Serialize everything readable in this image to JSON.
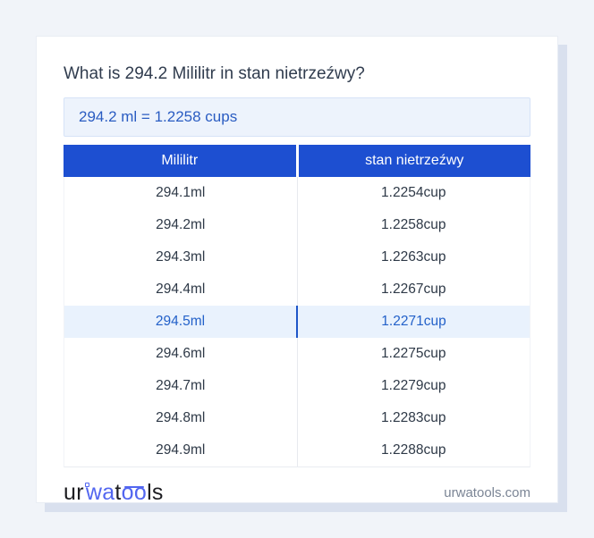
{
  "page": {
    "title": "What is 294.2 Mililitr in stan nietrzeźwy?",
    "result": "294.2 ml = 1.2258 cups",
    "footer_site": "urwatools.com"
  },
  "logo": {
    "name": "urwatools",
    "segments": [
      {
        "text": "ur",
        "style": "dark"
      },
      {
        "text": "",
        "style": "mark"
      },
      {
        "text": "wa",
        "style": "blue"
      },
      {
        "text": "t",
        "style": "dark"
      },
      {
        "text": "oo",
        "style": "blue-oo"
      },
      {
        "text": "ls",
        "style": "dark"
      }
    ]
  },
  "table": {
    "columns": [
      "Mililitr",
      "stan nietrzeźwy"
    ],
    "rows": [
      {
        "ml": "294.1ml",
        "cup": "1.2254cup",
        "highlight": false
      },
      {
        "ml": "294.2ml",
        "cup": "1.2258cup",
        "highlight": false
      },
      {
        "ml": "294.3ml",
        "cup": "1.2263cup",
        "highlight": false
      },
      {
        "ml": "294.4ml",
        "cup": "1.2267cup",
        "highlight": false
      },
      {
        "ml": "294.5ml",
        "cup": "1.2271cup",
        "highlight": true
      },
      {
        "ml": "294.6ml",
        "cup": "1.2275cup",
        "highlight": false
      },
      {
        "ml": "294.7ml",
        "cup": "1.2279cup",
        "highlight": false
      },
      {
        "ml": "294.8ml",
        "cup": "1.2283cup",
        "highlight": false
      },
      {
        "ml": "294.9ml",
        "cup": "1.2288cup",
        "highlight": false
      }
    ]
  },
  "colors": {
    "page_background": "#f1f4f9",
    "card_background": "#ffffff",
    "card_shadow": "#d9e0ee",
    "header_blue": "#1d4fd1",
    "result_box_background": "#edf3fc",
    "result_box_border": "#d6e3f7",
    "result_text_blue": "#2a5cc2",
    "highlight_row_background": "#e9f2fd",
    "highlight_text_blue": "#2361c9",
    "logo_blue": "#5266f0",
    "body_text": "#2e3947",
    "footer_text": "#7b8595"
  }
}
